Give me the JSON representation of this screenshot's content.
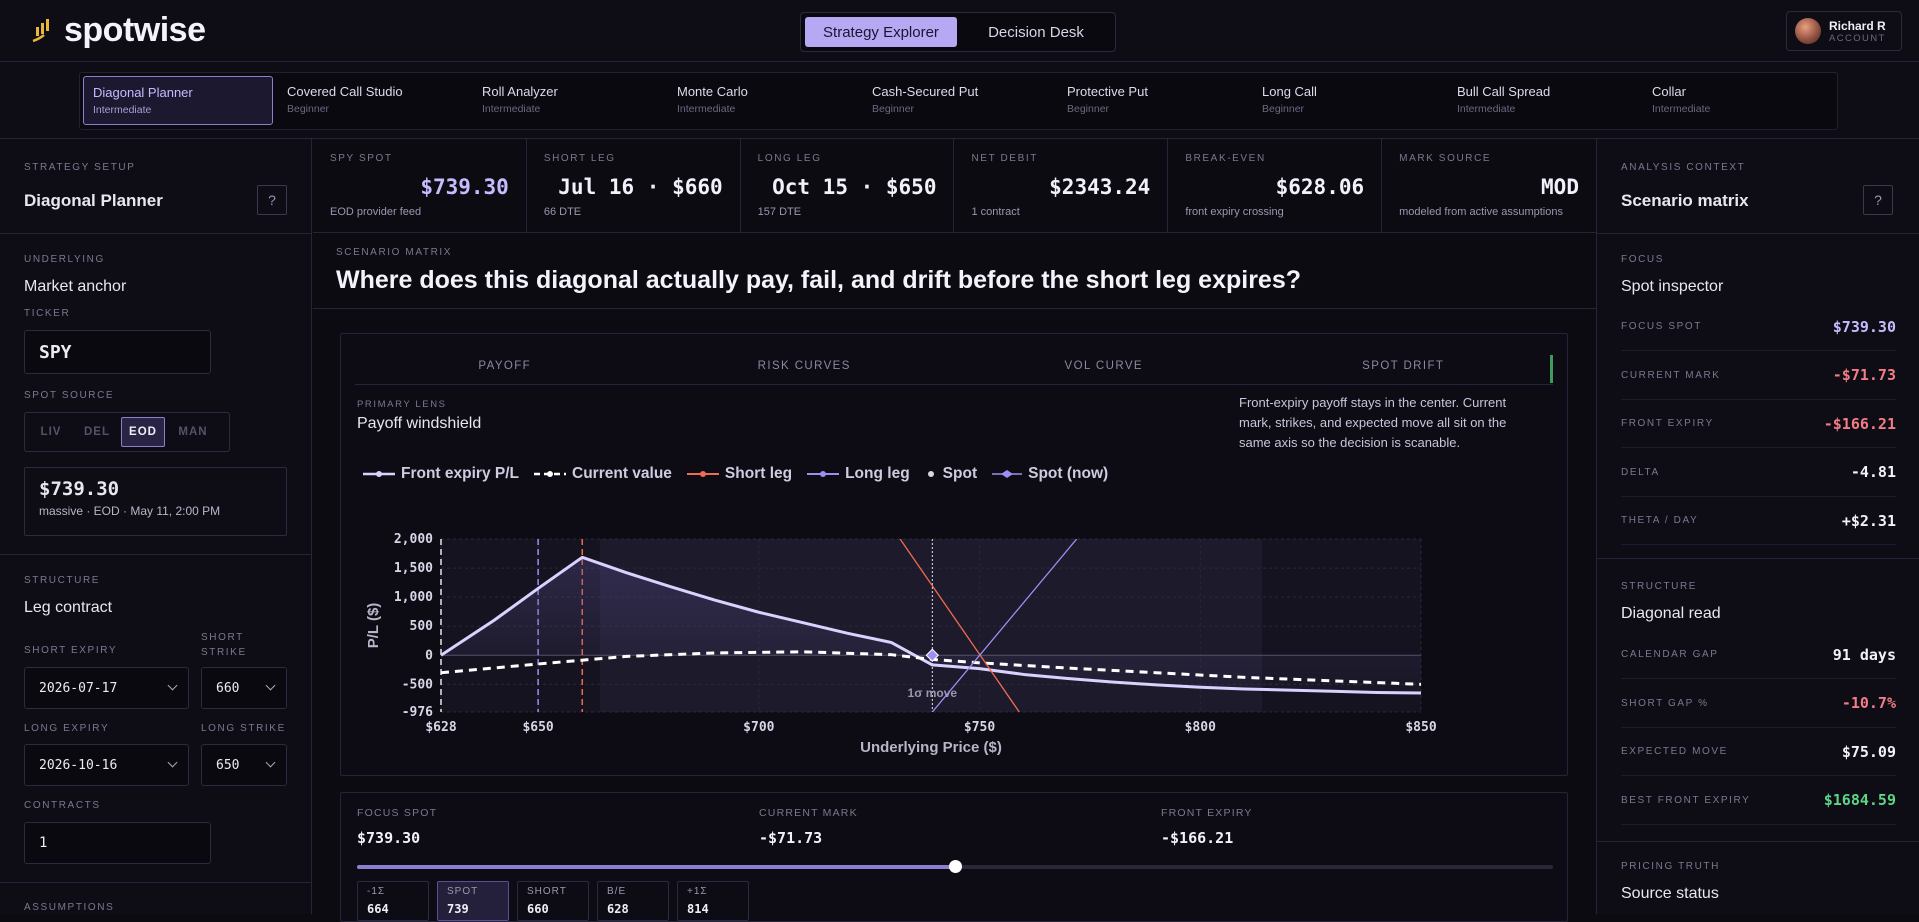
{
  "brand": {
    "name": "spotwise"
  },
  "modes": [
    {
      "label": "Strategy Explorer",
      "active": true
    },
    {
      "label": "Decision Desk",
      "active": false
    }
  ],
  "account": {
    "name": "Richard R",
    "sub": "ACCOUNT"
  },
  "strategies": [
    {
      "name": "Diagonal Planner",
      "level": "Intermediate"
    },
    {
      "name": "Covered Call Studio",
      "level": "Beginner"
    },
    {
      "name": "Roll Analyzer",
      "level": "Intermediate"
    },
    {
      "name": "Monte Carlo",
      "level": "Intermediate"
    },
    {
      "name": "Cash-Secured Put",
      "level": "Beginner"
    },
    {
      "name": "Protective Put",
      "level": "Beginner"
    },
    {
      "name": "Long Call",
      "level": "Beginner"
    },
    {
      "name": "Bull Call Spread",
      "level": "Intermediate"
    },
    {
      "name": "Collar",
      "level": "Intermediate"
    }
  ],
  "left": {
    "setup_label": "STRATEGY SETUP",
    "setup_title": "Diagonal Planner",
    "underlying_label": "UNDERLYING",
    "underlying_title": "Market anchor",
    "ticker_label": "TICKER",
    "ticker": "SPY",
    "spot_source_label": "SPOT SOURCE",
    "spot_sources": [
      "LIV",
      "DEL",
      "EOD",
      "MAN"
    ],
    "spot_source_active": "EOD",
    "spot_price": "$739.30",
    "spot_meta": "massive · EOD · May 11, 2:00 PM",
    "structure_label": "STRUCTURE",
    "structure_title": "Leg contract",
    "short_expiry_label": "SHORT EXPIRY",
    "short_expiry": "2026-07-17",
    "short_strike_label": "SHORT STRIKE",
    "short_strike": "660",
    "long_expiry_label": "LONG EXPIRY",
    "long_expiry": "2026-10-16",
    "long_strike_label": "LONG STRIKE",
    "long_strike": "650",
    "contracts_label": "CONTRACTS",
    "contracts": "1",
    "assumptions_label": "ASSUMPTIONS"
  },
  "metrics": [
    {
      "label": "SPY SPOT",
      "value": "$739.30",
      "sub": "EOD provider feed",
      "accent": true
    },
    {
      "label": "SHORT LEG",
      "value": "Jul 16 · $660",
      "sub": "66 DTE"
    },
    {
      "label": "LONG LEG",
      "value": "Oct 15 · $650",
      "sub": "157 DTE"
    },
    {
      "label": "NET DEBIT",
      "value": "$2343.24",
      "sub": "1 contract"
    },
    {
      "label": "BREAK-EVEN",
      "value": "$628.06",
      "sub": "front expiry crossing"
    },
    {
      "label": "MARK SOURCE",
      "value": "MOD",
      "sub": "modeled from active assumptions"
    }
  ],
  "main": {
    "eyebrow": "SCENARIO MATRIX",
    "heading": "Where does this diagonal actually pay, fail, and drift before the short leg expires?",
    "tabs": [
      "PAYOFF",
      "RISK CURVES",
      "VOL CURVE",
      "SPOT DRIFT"
    ],
    "lens_label": "PRIMARY LENS",
    "lens_title": "Payoff windshield",
    "lens_desc": "Front-expiry payoff stays in the center. Current mark, strikes, and expected move all sit on the same axis so the decision is scanable."
  },
  "chart_data": {
    "type": "line",
    "xlabel": "Underlying Price ($)",
    "ylabel": "P/L ($)",
    "xlim": [
      628,
      850
    ],
    "ylim": [
      -976,
      2000
    ],
    "x_ticks": [
      628,
      650,
      700,
      750,
      800,
      850
    ],
    "x_tick_labels": [
      "$628",
      "$650",
      "$700",
      "$750",
      "$800",
      "$850"
    ],
    "y_ticks": [
      2000,
      1500,
      1000,
      500,
      0,
      -500,
      -976
    ],
    "y_tick_labels": [
      "2,000",
      "1,500",
      "1,000",
      "500",
      "0",
      "-500",
      "-976"
    ],
    "legend": [
      "Front expiry P/L",
      "Current value",
      "Short leg",
      "Long leg",
      "Spot",
      "Spot (now)"
    ],
    "series": [
      {
        "name": "Front expiry P/L",
        "color": "#d9d2ff",
        "x": [
          628,
          640,
          650,
          660,
          670,
          680,
          690,
          700,
          710,
          720,
          730,
          739.3,
          750,
          760,
          770,
          780,
          790,
          800,
          810,
          820,
          830,
          840,
          850
        ],
        "y": [
          0,
          600,
          1150,
          1684.59,
          1420,
          1180,
          950,
          740,
          560,
          380,
          220,
          -166.21,
          -230,
          -330,
          -400,
          -460,
          -510,
          -550,
          -580,
          -600,
          -620,
          -640,
          -650
        ]
      },
      {
        "name": "Current value",
        "color": "#ffffff",
        "dash": true,
        "x": [
          628,
          650,
          670,
          690,
          710,
          730,
          739.3,
          750,
          770,
          790,
          810,
          830,
          850
        ],
        "y": [
          -300,
          -150,
          -20,
          40,
          60,
          10,
          -71.73,
          -130,
          -220,
          -300,
          -380,
          -440,
          -500
        ]
      },
      {
        "name": "Short leg",
        "color": "#f16a52",
        "x": [
          732,
          759
        ],
        "y": [
          2000,
          -976
        ]
      },
      {
        "name": "Long leg",
        "color": "#9d8ff2",
        "x": [
          739.3,
          772
        ],
        "y": [
          -976,
          2000
        ]
      }
    ],
    "markers": {
      "short_strike": 660,
      "long_strike": 650,
      "breakeven": 628,
      "spot": 739.3,
      "expected_move_label": "1σ move",
      "expected_move_range": [
        664,
        814
      ]
    },
    "grid": true
  },
  "focus": {
    "spot_label": "FOCUS SPOT",
    "spot": "$739.30",
    "mark_label": "CURRENT MARK",
    "mark": "-$71.73",
    "expiry_label": "FRONT EXPIRY",
    "expiry": "-$166.21",
    "slider_fraction": 0.5,
    "chips": [
      {
        "k": "-1Σ",
        "v": "664"
      },
      {
        "k": "SPOT",
        "v": "739",
        "on": true
      },
      {
        "k": "SHORT",
        "v": "660"
      },
      {
        "k": "B/E",
        "v": "628"
      },
      {
        "k": "+1Σ",
        "v": "814"
      }
    ]
  },
  "right": {
    "context_label": "ANALYSIS CONTEXT",
    "context_title": "Scenario matrix",
    "focus_label": "FOCUS",
    "focus_title": "Spot inspector",
    "rows1": [
      {
        "k": "FOCUS SPOT",
        "v": "$739.30",
        "cls": "pur"
      },
      {
        "k": "CURRENT MARK",
        "v": "-$71.73",
        "cls": "neg"
      },
      {
        "k": "FRONT EXPIRY",
        "v": "-$166.21",
        "cls": "neg"
      },
      {
        "k": "DELTA",
        "v": "-4.81",
        "cls": ""
      },
      {
        "k": "THETA / DAY",
        "v": "+$2.31",
        "cls": ""
      }
    ],
    "structure_label": "STRUCTURE",
    "structure_title": "Diagonal read",
    "rows2": [
      {
        "k": "CALENDAR GAP",
        "v": "91 days",
        "cls": ""
      },
      {
        "k": "SHORT GAP %",
        "v": "-10.7%",
        "cls": "neg"
      },
      {
        "k": "EXPECTED MOVE",
        "v": "$75.09",
        "cls": ""
      },
      {
        "k": "BEST FRONT EXPIRY",
        "v": "$1684.59",
        "cls": "pos"
      }
    ],
    "pricing_label": "PRICING TRUTH",
    "pricing_title": "Source status"
  }
}
